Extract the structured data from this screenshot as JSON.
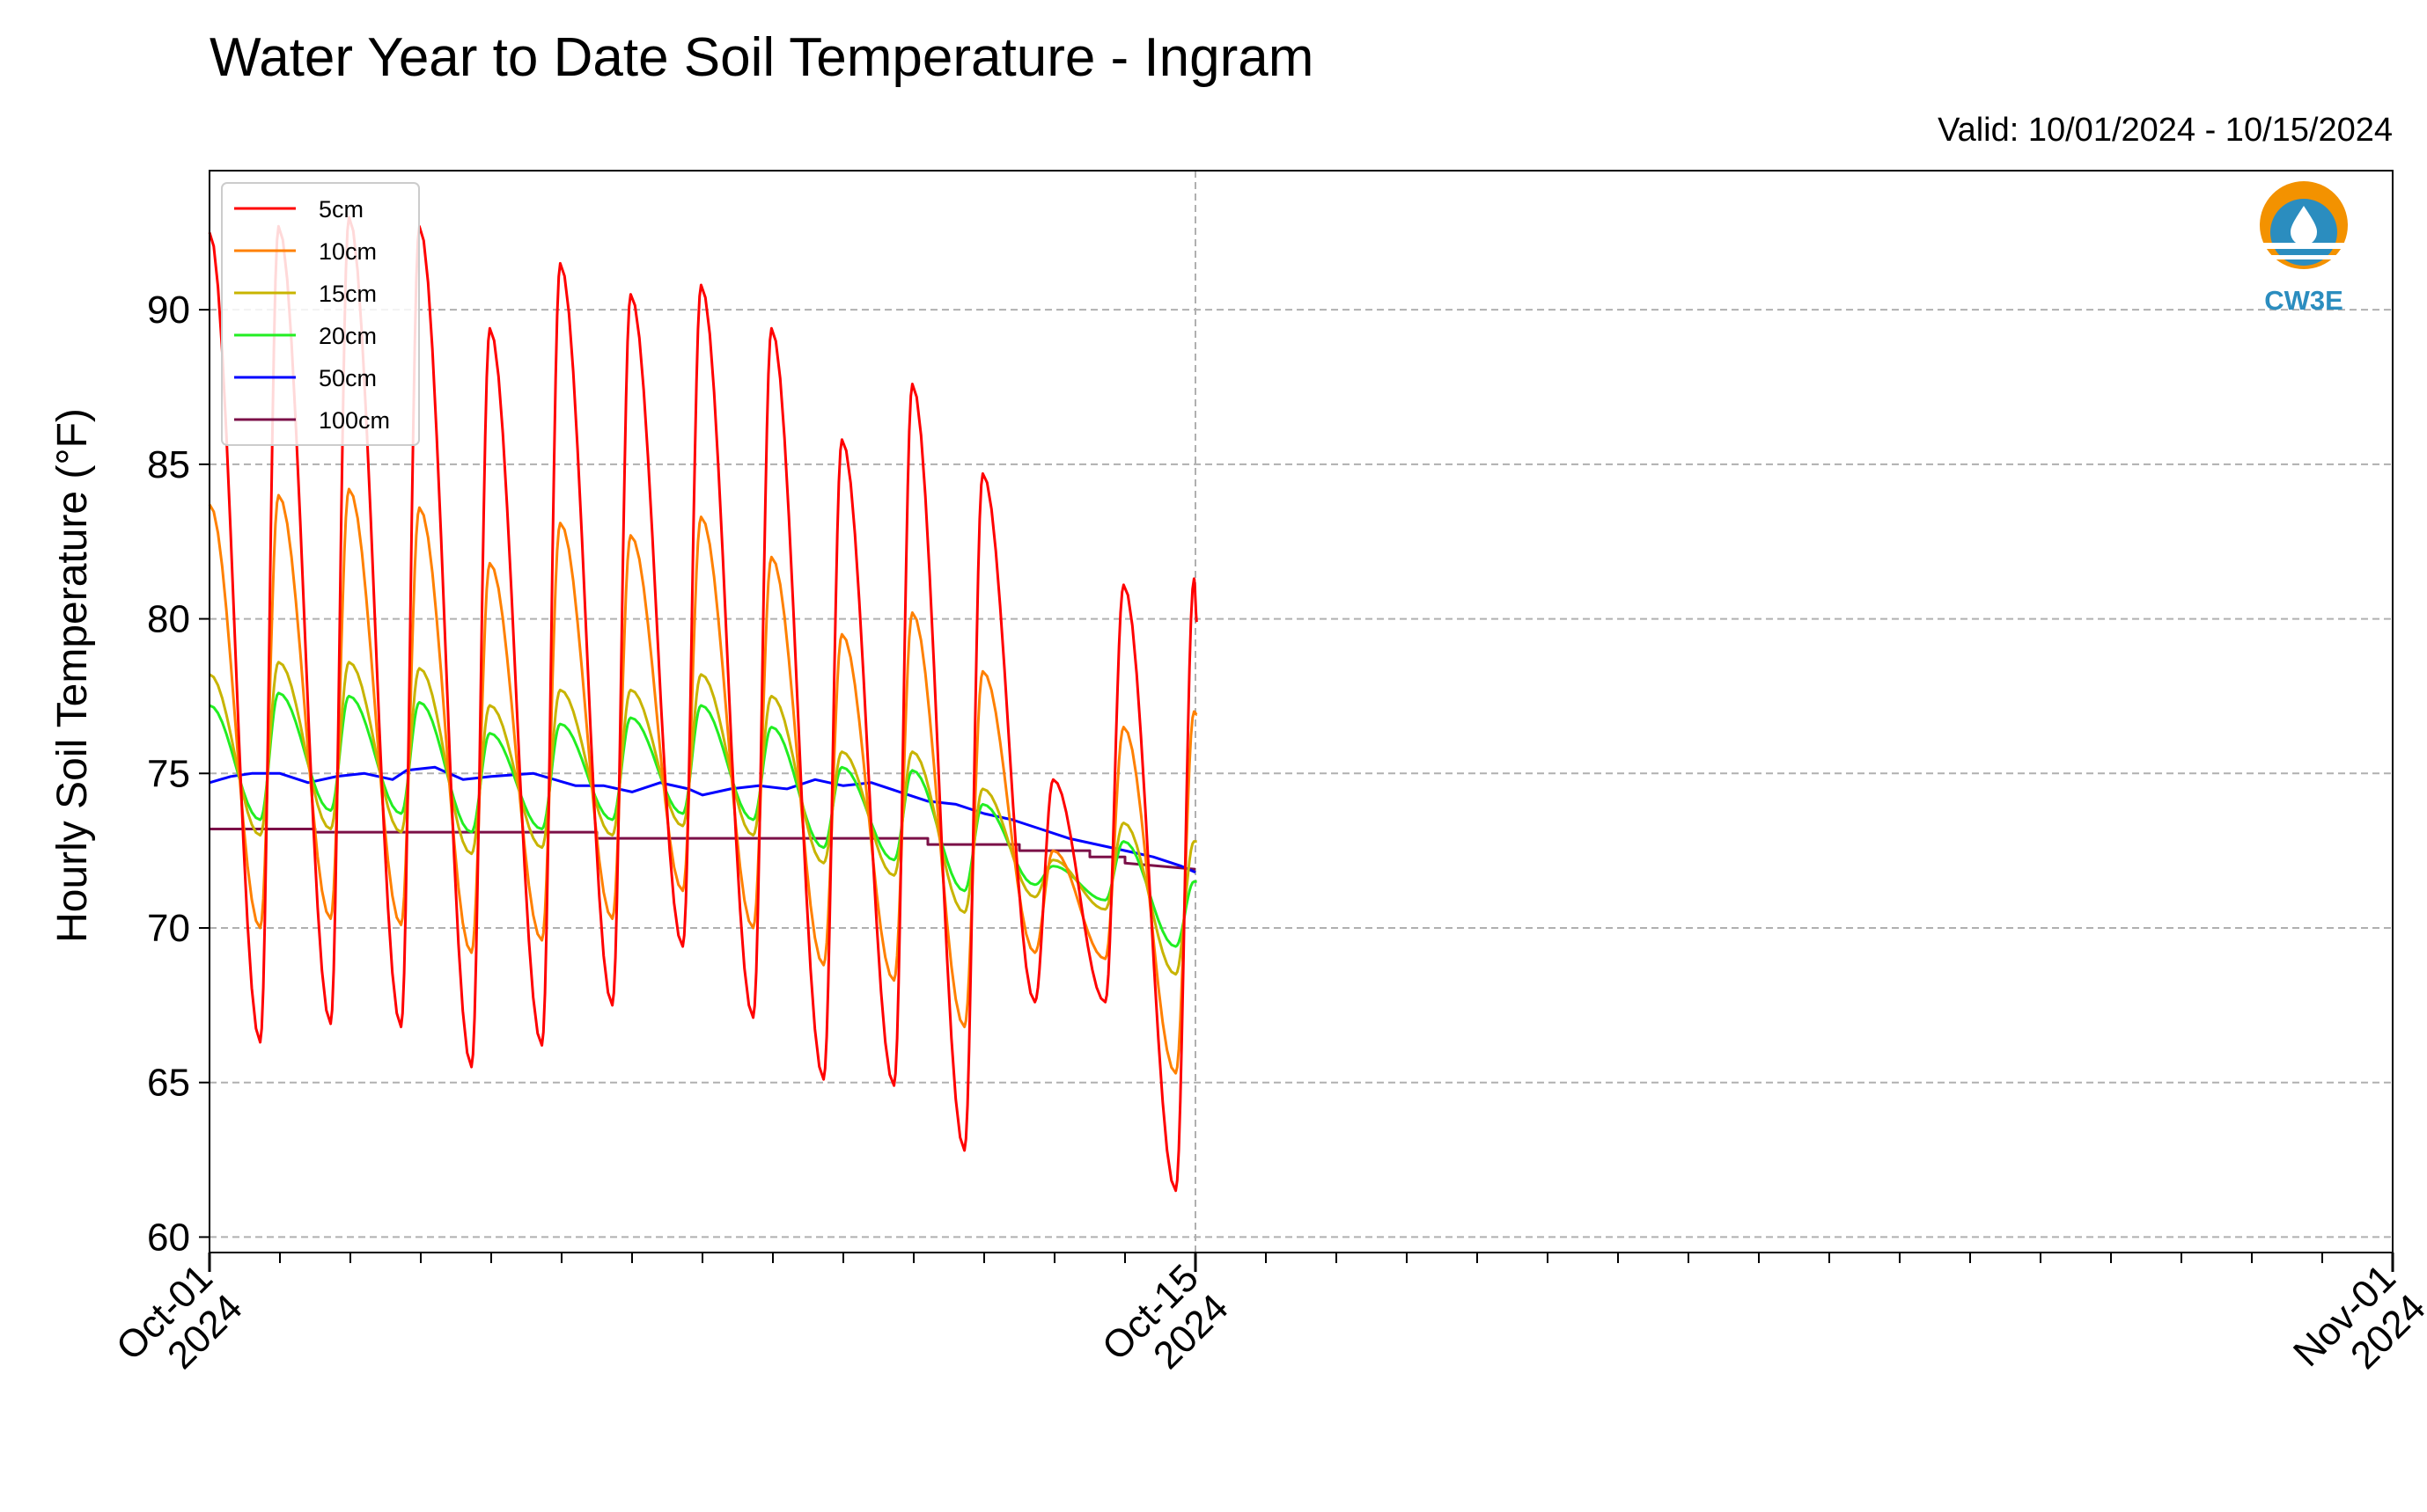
{
  "chart_data": {
    "type": "line",
    "title": "Water Year to Date Soil Temperature - Ingram",
    "subtitle": "Valid: 10/01/2024 - 10/15/2024",
    "xlabel": "",
    "ylabel": "Hourly Soil Temperature (°F)",
    "xlim": [
      "2024-10-01",
      "2024-11-01"
    ],
    "ylim": [
      59.5,
      94.5
    ],
    "yticks": [
      60,
      65,
      70,
      75,
      80,
      85,
      90
    ],
    "xticks": [
      {
        "date": "2024-10-01",
        "line1": "Oct-01",
        "line2": "2024"
      },
      {
        "date": "2024-10-15",
        "line1": "Oct-15",
        "line2": "2024"
      },
      {
        "date": "2024-11-01",
        "line1": "Nov-01",
        "line2": "2024"
      }
    ],
    "grid": true,
    "legend_position": "top-left",
    "series": [
      {
        "name": "5cm",
        "color": "#ff0000",
        "peaks": [
          92.5,
          92.7,
          93.0,
          92.7,
          89.4,
          91.5,
          90.5,
          90.8,
          89.4,
          85.8,
          87.6,
          84.7,
          74.8,
          81.1,
          81.3
        ],
        "troughs": [
          66.3,
          66.9,
          66.8,
          65.5,
          66.2,
          67.5,
          69.4,
          67.1,
          65.1,
          64.9,
          62.8,
          67.6,
          67.6,
          61.5
        ],
        "end": 79.9
      },
      {
        "name": "10cm",
        "color": "#ff8000",
        "peaks": [
          83.7,
          84.0,
          84.2,
          83.6,
          81.8,
          83.1,
          82.7,
          83.3,
          82.0,
          79.5,
          80.2,
          78.3,
          72.5,
          76.5,
          77.0
        ],
        "troughs": [
          70.0,
          70.3,
          70.1,
          69.2,
          69.6,
          70.3,
          71.2,
          70.0,
          68.8,
          68.3,
          66.8,
          69.2,
          69.0,
          65.3
        ],
        "end": 76.9
      },
      {
        "name": "15cm",
        "color": "#c8b400",
        "peaks": [
          78.2,
          78.6,
          78.6,
          78.4,
          77.2,
          77.7,
          77.7,
          78.2,
          77.5,
          75.7,
          75.7,
          74.5,
          72.2,
          73.4,
          72.8
        ],
        "troughs": [
          73.0,
          73.2,
          73.1,
          72.4,
          72.6,
          73.0,
          73.3,
          73.0,
          72.1,
          71.7,
          70.5,
          71.0,
          70.6,
          68.5
        ],
        "end": 72.8
      },
      {
        "name": "20cm",
        "color": "#22ee22",
        "peaks": [
          77.2,
          77.6,
          77.5,
          77.3,
          76.3,
          76.6,
          76.8,
          77.2,
          76.5,
          75.2,
          75.1,
          74.0,
          72.0,
          72.8,
          71.5
        ],
        "troughs": [
          73.5,
          73.8,
          73.7,
          73.1,
          73.2,
          73.5,
          73.7,
          73.5,
          72.6,
          72.2,
          71.2,
          71.4,
          70.9,
          69.4
        ],
        "end": 71.5
      },
      {
        "name": "50cm",
        "color": "#0000ff",
        "x": [
          0,
          0.3,
          0.6,
          1.0,
          1.4,
          1.8,
          2.2,
          2.6,
          2.8,
          3.2,
          3.6,
          4.0,
          4.6,
          5.2,
          5.6,
          6.0,
          6.4,
          6.8,
          7.0,
          7.4,
          7.8,
          8.2,
          8.6,
          9.0,
          9.4,
          9.8,
          10.2,
          10.6,
          11.0,
          11.4,
          11.8,
          12.2,
          12.6,
          13.0,
          13.4,
          13.8,
          14.0
        ],
        "y": [
          74.7,
          74.9,
          75.0,
          75.0,
          74.7,
          74.9,
          75.0,
          74.8,
          75.1,
          75.2,
          74.8,
          74.9,
          75.0,
          74.6,
          74.6,
          74.4,
          74.7,
          74.5,
          74.3,
          74.5,
          74.6,
          74.5,
          74.8,
          74.6,
          74.7,
          74.4,
          74.1,
          74.0,
          73.7,
          73.5,
          73.2,
          72.9,
          72.7,
          72.5,
          72.3,
          72.0,
          71.8
        ]
      },
      {
        "name": "100cm",
        "color": "#7b1048",
        "x": [
          0,
          1.5,
          1.5,
          5.5,
          5.5,
          10.2,
          10.2,
          11.5,
          11.5,
          12.5,
          12.5,
          13.0,
          13.0,
          14.0
        ],
        "y": [
          73.2,
          73.2,
          73.1,
          73.1,
          72.9,
          72.9,
          72.7,
          72.7,
          72.5,
          72.5,
          72.3,
          72.3,
          72.1,
          71.9
        ]
      }
    ]
  },
  "logo": {
    "label": "CW3E"
  }
}
